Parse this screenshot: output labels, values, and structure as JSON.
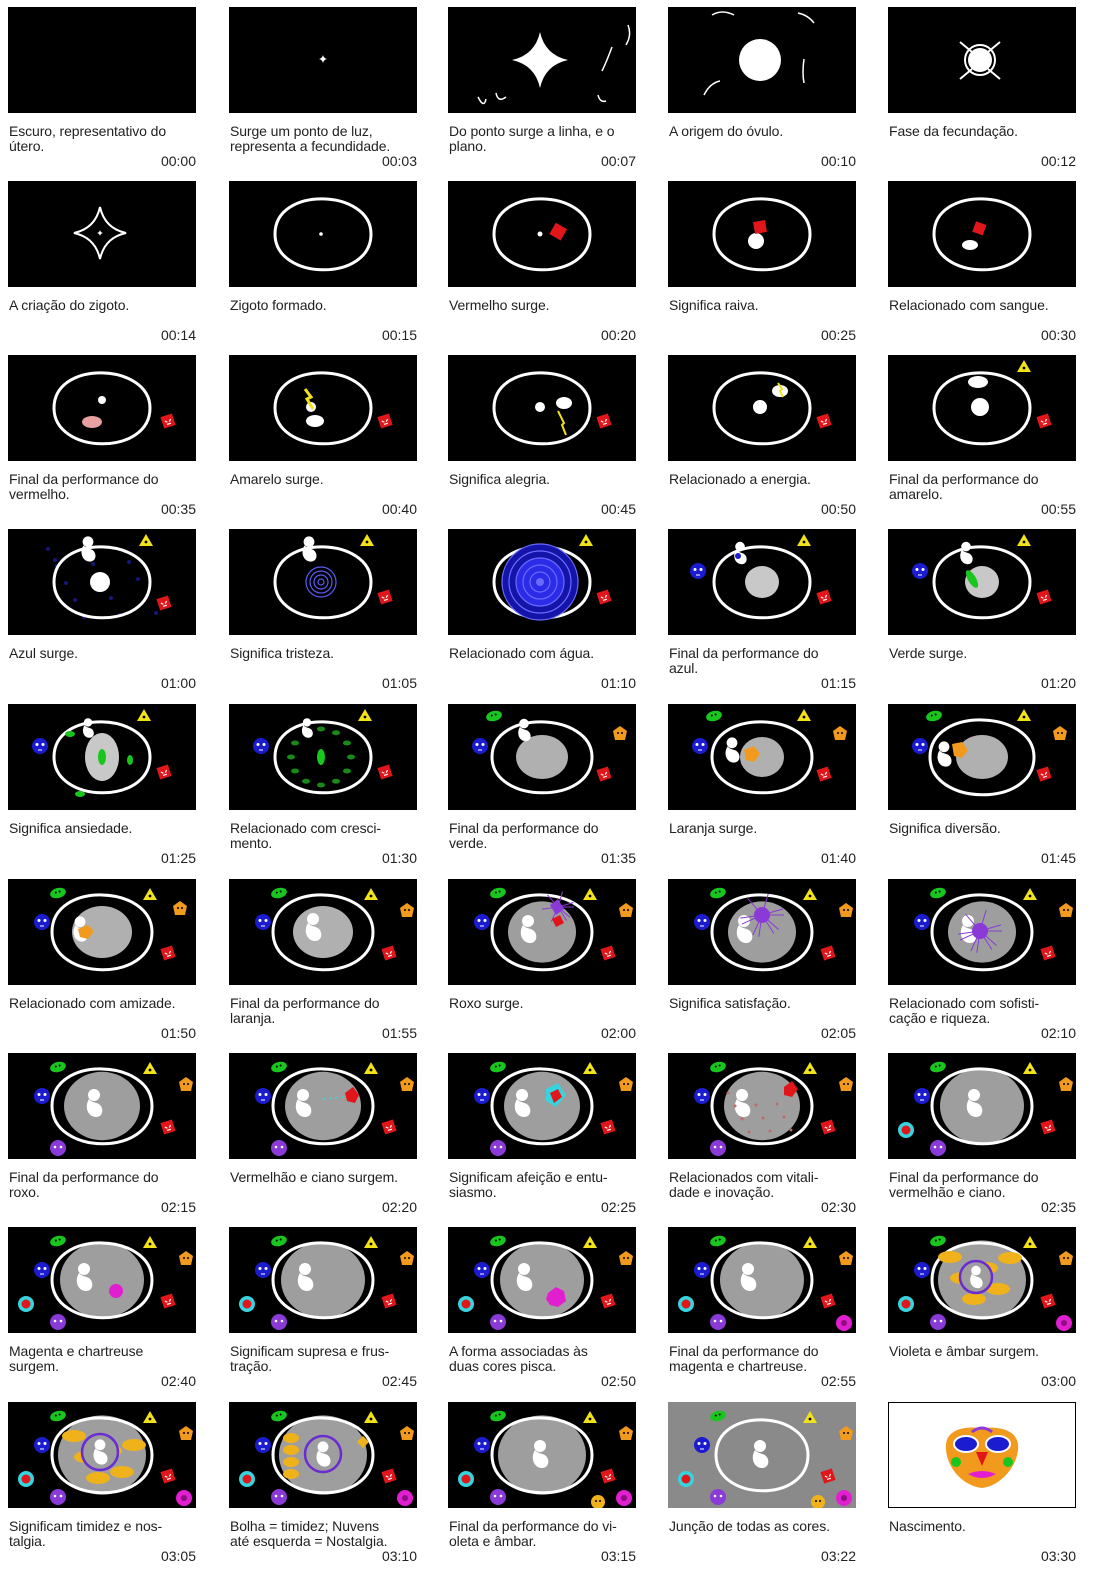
{
  "frames": [
    {
      "caption": "Escuro, representativo do\nútero.",
      "time": "00:00"
    },
    {
      "caption": "Surge um ponto de luz,\nrepresenta a fecundidade.",
      "time": "00:03"
    },
    {
      "caption": "Do ponto surge a linha, e o\nplano.",
      "time": "00:07"
    },
    {
      "caption": "A origem do óvulo.",
      "time": "00:10"
    },
    {
      "caption": "Fase da fecundação.",
      "time": "00:12"
    },
    {
      "caption": "A criação do zigoto.",
      "time": "00:14"
    },
    {
      "caption": "Zigoto formado.",
      "time": "00:15"
    },
    {
      "caption": "Vermelho surge.",
      "time": "00:20"
    },
    {
      "caption": "Significa raiva.",
      "time": "00:25"
    },
    {
      "caption": "Relacionado com sangue.",
      "time": "00:30"
    },
    {
      "caption": "Final da performance do\nvermelho.",
      "time": "00:35"
    },
    {
      "caption": "Amarelo surge.",
      "time": "00:40"
    },
    {
      "caption": "Significa alegria.",
      "time": "00:45"
    },
    {
      "caption": "Relacionado a energia.",
      "time": "00:50"
    },
    {
      "caption": "Final da performance do\namarelo.",
      "time": "00:55"
    },
    {
      "caption": "Azul surge.",
      "time": "01:00"
    },
    {
      "caption": "Significa tristeza.",
      "time": "01:05"
    },
    {
      "caption": "Relacionado com água.",
      "time": "01:10"
    },
    {
      "caption": "Final da performance do\nazul.",
      "time": "01:15"
    },
    {
      "caption": "Verde surge.",
      "time": "01:20"
    },
    {
      "caption": "Significa ansiedade.",
      "time": "01:25"
    },
    {
      "caption": "Relacionado com cresci-\nmento.",
      "time": "01:30"
    },
    {
      "caption": "Final da performance do\nverde.",
      "time": "01:35"
    },
    {
      "caption": "Laranja surge.",
      "time": "01:40"
    },
    {
      "caption": "Significa diversão.",
      "time": "01:45"
    },
    {
      "caption": "Relacionado com amizade.",
      "time": "01:50"
    },
    {
      "caption": "Final da performance do\nlaranja.",
      "time": "01:55"
    },
    {
      "caption": "Roxo surge.",
      "time": "02:00"
    },
    {
      "caption": "Significa satisfação.",
      "time": "02:05"
    },
    {
      "caption": "Relacionado com sofisti-\ncação e riqueza.",
      "time": "02:10"
    },
    {
      "caption": "Final da performance do\nroxo.",
      "time": "02:15"
    },
    {
      "caption": "Vermelhão e ciano surgem.",
      "time": "02:20"
    },
    {
      "caption": "Significam afeição e entu-\nsiasmo.",
      "time": "02:25"
    },
    {
      "caption": "Relacionados com vitali-\ndade e inovação.",
      "time": "02:30"
    },
    {
      "caption": "Final da performance do\nvermelhão e ciano.",
      "time": "02:35"
    },
    {
      "caption": "Magenta e chartreuse\nsurgem.",
      "time": "02:40"
    },
    {
      "caption": "Significam supresa e frus-\ntração.",
      "time": "02:45"
    },
    {
      "caption": "A forma associadas às\nduas cores pisca.",
      "time": "02:50"
    },
    {
      "caption": "Final da performance do\nmagenta e chartreuse.",
      "time": "02:55"
    },
    {
      "caption": "Violeta e âmbar surgem.",
      "time": "03:00"
    },
    {
      "caption": "Significam timidez e nos-\ntalgia.",
      "time": "03:05"
    },
    {
      "caption": "Bolha = timidez; Nuvens\naté esquerda = Nostalgia.",
      "time": "03:10"
    },
    {
      "caption": "Final da performance do vi-\noleta e âmbar.",
      "time": "03:15"
    },
    {
      "caption": "Junção de todas as cores.",
      "time": "03:22"
    },
    {
      "caption": "Nascimento.",
      "time": "03:30"
    }
  ],
  "colors": {
    "background": "#000000",
    "red": "#e0161b",
    "yellow": "#f2e21a",
    "blue": "#1b1bd0",
    "green": "#19c61d",
    "orange": "#f29a1e",
    "purple": "#8a3ad6",
    "magenta": "#e21fd0",
    "cyan": "#35d4de",
    "amber": "#f0b21a",
    "violet": "#6a2bd0",
    "grey": "#b0b0b0"
  }
}
